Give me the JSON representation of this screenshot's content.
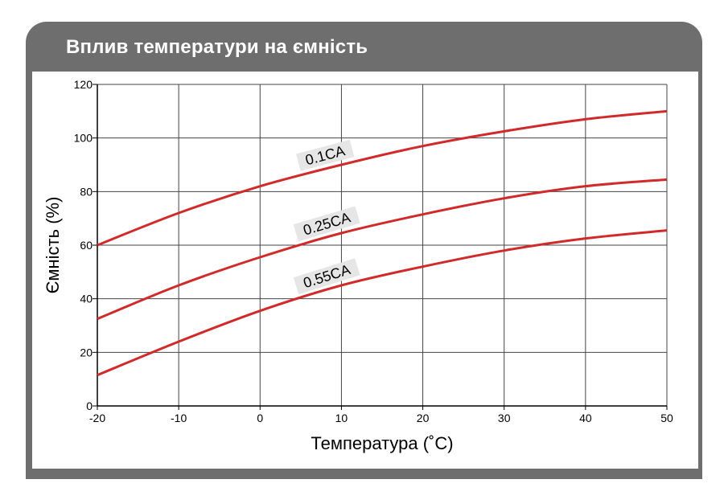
{
  "header": {
    "title": "Вплив температури на ємність"
  },
  "colors": {
    "frame": "#6e6e6e",
    "line": "#d12a2a",
    "grid": "#444444",
    "label_bg": "#e6e6e6"
  },
  "chart_data": {
    "type": "line",
    "xlabel": "Температура (˚C)",
    "ylabel": "Ємність (%)",
    "xlim": [
      -20,
      50
    ],
    "ylim": [
      0,
      120
    ],
    "x_ticks": [
      -20,
      -10,
      0,
      10,
      20,
      30,
      40,
      50
    ],
    "y_ticks": [
      0,
      20,
      40,
      60,
      80,
      100,
      120
    ],
    "grid": true,
    "x": [
      -20,
      -10,
      0,
      10,
      20,
      30,
      40,
      50
    ],
    "series": [
      {
        "name": "0.1CA",
        "values": [
          60,
          72,
          82,
          90,
          97,
          102.5,
          107,
          110
        ]
      },
      {
        "name": "0.25CA",
        "values": [
          32.5,
          45,
          55.5,
          64.5,
          71.5,
          77.5,
          82,
          84.5
        ]
      },
      {
        "name": "0.55CA",
        "values": [
          11.5,
          24,
          35.5,
          45,
          52,
          58,
          62.5,
          65.5
        ]
      }
    ]
  }
}
